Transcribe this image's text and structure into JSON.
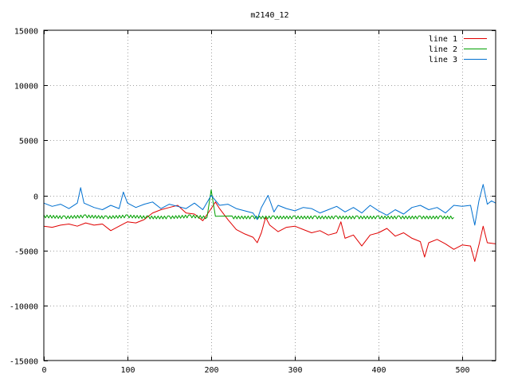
{
  "chart_data": {
    "type": "line",
    "title": "m2140_12",
    "xlabel": "",
    "ylabel": "",
    "xlim": [
      0,
      540
    ],
    "ylim": [
      -15000,
      15000
    ],
    "x_ticks": [
      0,
      100,
      200,
      300,
      400,
      500
    ],
    "y_ticks": [
      -15000,
      -10000,
      -5000,
      0,
      5000,
      10000,
      15000
    ],
    "grid": true,
    "legend_position": "top-right",
    "series": [
      {
        "name": "line 1",
        "color": "#e00000",
        "x": [
          0,
          10,
          20,
          30,
          40,
          50,
          60,
          70,
          80,
          90,
          100,
          110,
          120,
          130,
          140,
          150,
          160,
          170,
          180,
          190,
          200,
          205,
          210,
          220,
          230,
          240,
          250,
          255,
          260,
          265,
          270,
          280,
          290,
          300,
          310,
          320,
          330,
          340,
          350,
          355,
          360,
          370,
          380,
          390,
          400,
          410,
          420,
          430,
          440,
          450,
          455,
          460,
          470,
          480,
          490,
          500,
          510,
          515,
          520,
          525,
          530,
          540
        ],
        "y": [
          -2800,
          -2900,
          -2700,
          -2600,
          -2800,
          -2500,
          -2700,
          -2600,
          -3200,
          -2800,
          -2400,
          -2500,
          -2200,
          -1600,
          -1300,
          -1100,
          -900,
          -1600,
          -1700,
          -2300,
          -1200,
          -600,
          -1200,
          -2200,
          -3100,
          -3500,
          -3800,
          -4300,
          -3400,
          -2000,
          -2700,
          -3300,
          -2900,
          -2800,
          -3100,
          -3400,
          -3200,
          -3600,
          -3400,
          -2400,
          -3900,
          -3600,
          -4600,
          -3600,
          -3400,
          -3000,
          -3700,
          -3400,
          -3900,
          -4200,
          -5600,
          -4300,
          -4000,
          -4400,
          -4900,
          -4500,
          -4600,
          -6000,
          -4500,
          -2800,
          -4300,
          -4400
        ]
      },
      {
        "name": "line 2",
        "color": "#00a000",
        "x": [
          0,
          25,
          50,
          75,
          100,
          125,
          150,
          175,
          195,
          200,
          205,
          225,
          250,
          275,
          300,
          325,
          350,
          375,
          400,
          425,
          450,
          475,
          490
        ],
        "y": [
          -1900,
          -2000,
          -1900,
          -2000,
          -1900,
          -2000,
          -2000,
          -1900,
          -2000,
          500,
          -1900,
          -2000,
          -2000,
          -2000,
          -2000,
          -2000,
          -2000,
          -2000,
          -2000,
          -2000,
          -2000,
          -2000,
          -2000
        ]
      },
      {
        "name": "line 3",
        "color": "#0070d0",
        "x": [
          0,
          10,
          20,
          30,
          40,
          44,
          48,
          60,
          70,
          80,
          90,
          95,
          100,
          110,
          120,
          130,
          140,
          150,
          160,
          170,
          180,
          190,
          200,
          210,
          220,
          230,
          240,
          250,
          255,
          260,
          268,
          275,
          280,
          290,
          300,
          310,
          320,
          330,
          340,
          350,
          360,
          370,
          380,
          390,
          400,
          410,
          420,
          430,
          440,
          450,
          460,
          470,
          480,
          490,
          500,
          510,
          515,
          520,
          525,
          530,
          535,
          540
        ],
        "y": [
          -700,
          -1000,
          -800,
          -1200,
          -700,
          700,
          -700,
          -1100,
          -1300,
          -900,
          -1200,
          300,
          -700,
          -1100,
          -800,
          -600,
          -1200,
          -800,
          -1000,
          -1200,
          -700,
          -1300,
          0,
          -900,
          -800,
          -1200,
          -1400,
          -1600,
          -2200,
          -1100,
          0,
          -1500,
          -900,
          -1200,
          -1400,
          -1100,
          -1200,
          -1600,
          -1300,
          -1000,
          -1500,
          -1100,
          -1600,
          -900,
          -1400,
          -1800,
          -1300,
          -1700,
          -1100,
          -900,
          -1300,
          -1100,
          -1600,
          -900,
          -1000,
          -900,
          -2700,
          -500,
          1000,
          -800,
          -500,
          -700
        ]
      }
    ]
  }
}
